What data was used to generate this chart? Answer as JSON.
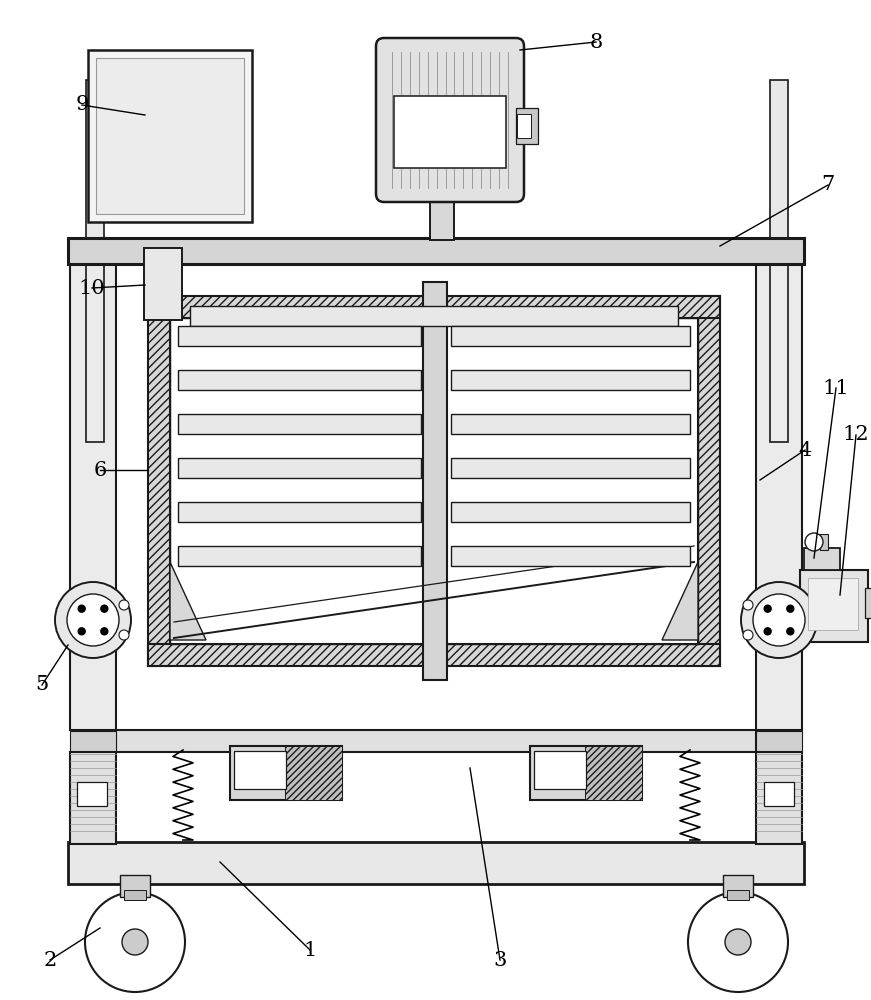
{
  "bg": "#ffffff",
  "lc": "#1a1a1a",
  "g1": "#f0f0f0",
  "g2": "#e0e0e0",
  "g3": "#cccccc",
  "g4": "#b8b8b8"
}
